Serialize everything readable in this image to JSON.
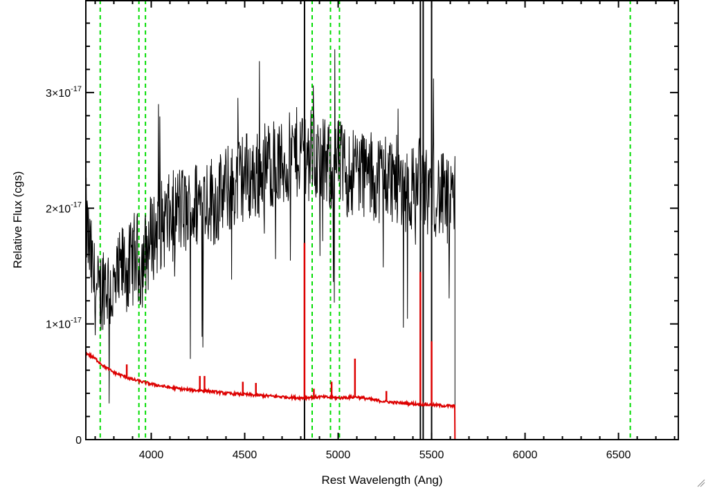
{
  "chart_data": {
    "type": "line",
    "title": "",
    "xlabel": "Rest Wavelength (Ang)",
    "ylabel": "Relative Flux (cgs)",
    "xlim": [
      3650,
      6820
    ],
    "ylim": [
      0,
      3.8e-17
    ],
    "x_ticks": [
      {
        "value": 4000,
        "label": "4000"
      },
      {
        "value": 4500,
        "label": "4500"
      },
      {
        "value": 5000,
        "label": "5000"
      },
      {
        "value": 5500,
        "label": "5500"
      },
      {
        "value": 6000,
        "label": "6000"
      },
      {
        "value": 6500,
        "label": "6500"
      }
    ],
    "y_ticks": [
      {
        "value": 0,
        "base": "0",
        "exp": ""
      },
      {
        "value": 1e-17,
        "base": "1×10",
        "exp": "-17"
      },
      {
        "value": 2e-17,
        "base": "2×10",
        "exp": "-17"
      },
      {
        "value": 3e-17,
        "base": "3×10",
        "exp": "-17"
      }
    ],
    "grid": false,
    "vertical_lines_dashed": [
      3727,
      3934,
      3969,
      4861,
      4959,
      5007,
      6563
    ],
    "dashed_color": "#00dd00",
    "series": [
      {
        "role": "observed-spectrum",
        "color": "#000000",
        "x": [
          3650,
          3680,
          3700,
          3720,
          3750,
          3780,
          3800,
          3830,
          3850,
          3880,
          3900,
          3920,
          3940,
          3960,
          3980,
          4000,
          4050,
          4100,
          4150,
          4200,
          4250,
          4300,
          4350,
          4400,
          4450,
          4500,
          4550,
          4600,
          4650,
          4700,
          4750,
          4800,
          4820,
          4840,
          4860,
          4900,
          4950,
          5000,
          5050,
          5100,
          5150,
          5200,
          5250,
          5300,
          5350,
          5400,
          5430,
          5460,
          5480,
          5500,
          5520,
          5550,
          5580,
          5600,
          5620,
          5625
        ],
        "y": [
          1.9e-17,
          1.5e-17,
          1.3e-17,
          1.2e-17,
          1.4e-17,
          1.3e-17,
          1.25e-17,
          1.4e-17,
          1.5e-17,
          1.45e-17,
          1.55e-17,
          1.6e-17,
          1.5e-17,
          1.55e-17,
          1.65e-17,
          1.75e-17,
          1.85e-17,
          1.9e-17,
          2e-17,
          1.95e-17,
          2.05e-17,
          2.1e-17,
          2.05e-17,
          2.15e-17,
          2.2e-17,
          2.3e-17,
          2.25e-17,
          2.35e-17,
          2.4e-17,
          2.35e-17,
          2.45e-17,
          2.5e-17,
          2.55e-17,
          2.45e-17,
          2.5e-17,
          2.4e-17,
          2.35e-17,
          2.4e-17,
          2.3e-17,
          2.35e-17,
          2.3e-17,
          2.25e-17,
          2.3e-17,
          2.25e-17,
          2.2e-17,
          2.15e-17,
          2.3e-17,
          2.2e-17,
          2.1e-17,
          2.2e-17,
          2.15e-17,
          2.1e-17,
          2.05e-17,
          2e-17,
          2e-17,
          2e-17
        ],
        "noise_amplitude": 4e-18,
        "spikes": [
          {
            "x": 4820,
            "y_min": 0,
            "y_max": 3.8e-17
          },
          {
            "x": 5440,
            "y_min": 0,
            "y_max": 3.8e-17
          },
          {
            "x": 5455,
            "y_min": 0,
            "y_max": 3.8e-17
          },
          {
            "x": 5500,
            "y_min": 0,
            "y_max": 3.8e-17
          }
        ],
        "cutoff": {
          "x": 5625,
          "y_top": 2.45e-17
        }
      },
      {
        "role": "model-spectrum",
        "color": "#dd0000",
        "x": [
          3650,
          3700,
          3750,
          3800,
          3850,
          3900,
          3950,
          4000,
          4100,
          4200,
          4300,
          4400,
          4500,
          4600,
          4700,
          4800,
          4900,
          5000,
          5100,
          5200,
          5300,
          5400,
          5500,
          5600,
          5625
        ],
        "y": [
          7.5e-18,
          7e-18,
          6.3e-18,
          5.8e-18,
          5.5e-18,
          5.2e-18,
          5e-18,
          4.8e-18,
          4.5e-18,
          4.3e-18,
          4.2e-18,
          4e-18,
          3.9e-18,
          3.8e-18,
          3.7e-18,
          3.6e-18,
          3.7e-18,
          3.6e-18,
          3.7e-18,
          3.4e-18,
          3.2e-18,
          3.1e-18,
          3e-18,
          2.9e-18,
          2.9e-18
        ],
        "emission_lines": [
          {
            "x": 3869,
            "peak": 6.5e-18
          },
          {
            "x": 4260,
            "peak": 5.5e-18
          },
          {
            "x": 4285,
            "peak": 5.5e-18
          },
          {
            "x": 4490,
            "peak": 5e-18
          },
          {
            "x": 4560,
            "peak": 4.9e-18
          },
          {
            "x": 4820,
            "peak": 1.7e-17
          },
          {
            "x": 4870,
            "peak": 4.4e-18
          },
          {
            "x": 4965,
            "peak": 5e-18
          },
          {
            "x": 5090,
            "peak": 7e-18
          },
          {
            "x": 5258,
            "peak": 4.2e-18
          },
          {
            "x": 5440,
            "peak": 1.45e-17
          },
          {
            "x": 5500,
            "peak": 8.5e-18
          }
        ],
        "tail": {
          "x_start": 5625,
          "x_end": 6820,
          "y": 0
        }
      }
    ]
  }
}
